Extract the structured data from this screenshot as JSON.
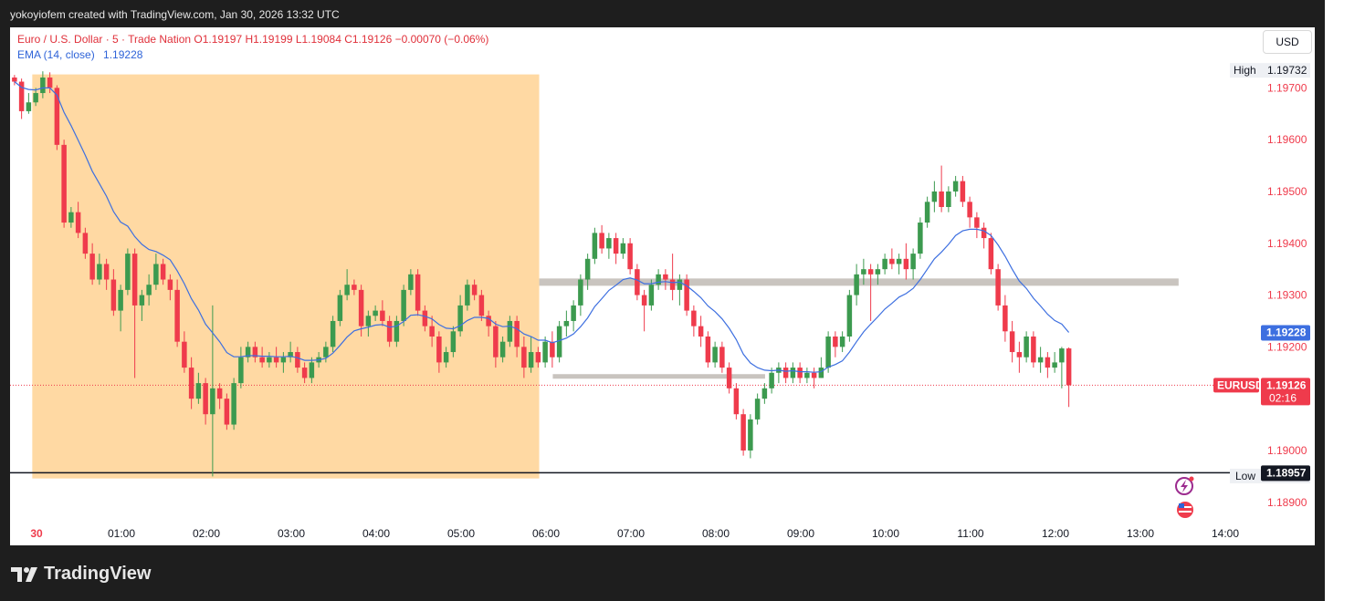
{
  "header": {
    "attribution": "yokoyiofem created with TradingView.com, Jan 30, 2026 13:32 UTC"
  },
  "legend": {
    "symbol_line": "Euro / U.S. Dollar · 5 · Trade Nation  O1.19197  H1.19199  L1.19084  C1.19126  −0.00070 (−0.06%)",
    "ema_name": "EMA (14, close)",
    "ema_value": "1.19228"
  },
  "currency_button": "USD",
  "footer": {
    "brand": "TradingView"
  },
  "colors": {
    "up": "#3c9a4f",
    "down": "#ef3b4c",
    "ema": "#3d6fe0",
    "zone_fill": "#ffd9a3",
    "level_line": "#c9c4bf",
    "grid_text": "#ef3b4c",
    "axis_text": "#131722"
  },
  "chart_data": {
    "type": "candlestick",
    "symbol": "EURUSD",
    "interval": "5",
    "ylim": [
      1.1887,
      1.1975
    ],
    "y_ticks": [
      1.197,
      1.196,
      1.195,
      1.194,
      1.193,
      1.192,
      1.19,
      1.189
    ],
    "y_tick_labels": [
      "1.19700",
      "1.19600",
      "1.19500",
      "1.19400",
      "1.19300",
      "1.19200",
      "1.19000",
      "1.18900"
    ],
    "x_ticks": [
      {
        "label": "30",
        "hour": 0,
        "bold": true
      },
      {
        "label": "01:00",
        "hour": 1
      },
      {
        "label": "02:00",
        "hour": 2
      },
      {
        "label": "03:00",
        "hour": 3
      },
      {
        "label": "04:00",
        "hour": 4
      },
      {
        "label": "05:00",
        "hour": 5
      },
      {
        "label": "06:00",
        "hour": 6
      },
      {
        "label": "07:00",
        "hour": 7
      },
      {
        "label": "08:00",
        "hour": 8
      },
      {
        "label": "09:00",
        "hour": 9
      },
      {
        "label": "10:00",
        "hour": 10
      },
      {
        "label": "11:00",
        "hour": 11
      },
      {
        "label": "12:00",
        "hour": 12
      },
      {
        "label": "13:00",
        "hour": 13
      },
      {
        "label": "14:00",
        "hour": 14
      }
    ],
    "labels": {
      "high": {
        "text": "High",
        "value": "1.19732",
        "price": 1.19732
      },
      "low": {
        "text": "Low",
        "value": "1.18949",
        "price": 1.18949
      },
      "ema": {
        "value": "1.19228",
        "price": 1.19228
      },
      "last": {
        "symbol": "EURUSD",
        "value": "1.19126",
        "price": 1.19126,
        "countdown": "02:16"
      },
      "horizontal_line": {
        "value": "1.18957",
        "price": 1.18957
      }
    },
    "annotations": {
      "session_box": {
        "from_hour": -0.05,
        "to_hour": 5.92,
        "top": 1.19726,
        "bottom": 1.18946
      },
      "resistance_zone": {
        "from_hour": 5.92,
        "to_hour": 13.45,
        "price": 1.19325
      },
      "support_zone": {
        "from_hour": 6.08,
        "to_hour": 8.58,
        "price": 1.19143
      }
    },
    "candles": [
      [
        1.1972,
        1.19725,
        1.19705,
        1.19712
      ],
      [
        1.19712,
        1.19718,
        1.1964,
        1.19655
      ],
      [
        1.19655,
        1.1969,
        1.1965,
        1.19672
      ],
      [
        1.19672,
        1.197,
        1.19665,
        1.1969
      ],
      [
        1.1969,
        1.19732,
        1.1968,
        1.1972
      ],
      [
        1.1972,
        1.1973,
        1.1969,
        1.197
      ],
      [
        1.197,
        1.19705,
        1.1958,
        1.1959
      ],
      [
        1.1959,
        1.196,
        1.1943,
        1.1944
      ],
      [
        1.1944,
        1.1947,
        1.1943,
        1.1946
      ],
      [
        1.1946,
        1.1948,
        1.1941,
        1.1942
      ],
      [
        1.1942,
        1.1943,
        1.1937,
        1.1938
      ],
      [
        1.1938,
        1.194,
        1.1932,
        1.1933
      ],
      [
        1.1933,
        1.1938,
        1.1932,
        1.1936
      ],
      [
        1.1936,
        1.1937,
        1.1931,
        1.1933
      ],
      [
        1.1933,
        1.1935,
        1.1926,
        1.1927
      ],
      [
        1.1927,
        1.1932,
        1.1923,
        1.1931
      ],
      [
        1.1931,
        1.1939,
        1.193,
        1.1938
      ],
      [
        1.1938,
        1.1939,
        1.1914,
        1.1928
      ],
      [
        1.1928,
        1.1931,
        1.1925,
        1.193
      ],
      [
        1.193,
        1.1934,
        1.1928,
        1.1932
      ],
      [
        1.1932,
        1.1938,
        1.1931,
        1.1936
      ],
      [
        1.1936,
        1.1937,
        1.1932,
        1.1933
      ],
      [
        1.1933,
        1.1934,
        1.1929,
        1.1931
      ],
      [
        1.1931,
        1.1933,
        1.192,
        1.1921
      ],
      [
        1.1921,
        1.1923,
        1.1915,
        1.1916
      ],
      [
        1.1916,
        1.1918,
        1.1908,
        1.191
      ],
      [
        1.191,
        1.1915,
        1.1909,
        1.1913
      ],
      [
        1.1913,
        1.1914,
        1.1905,
        1.1907
      ],
      [
        1.1907,
        1.1928,
        1.1895,
        1.1912
      ],
      [
        1.1912,
        1.1913,
        1.1908,
        1.191
      ],
      [
        1.191,
        1.1911,
        1.1904,
        1.1905
      ],
      [
        1.1905,
        1.1914,
        1.1904,
        1.1913
      ],
      [
        1.1913,
        1.192,
        1.1912,
        1.1918
      ],
      [
        1.1918,
        1.1921,
        1.1917,
        1.192
      ],
      [
        1.192,
        1.1921,
        1.1917,
        1.1918
      ],
      [
        1.1918,
        1.192,
        1.1916,
        1.1917
      ],
      [
        1.1917,
        1.1919,
        1.1916,
        1.1918
      ],
      [
        1.1918,
        1.192,
        1.1916,
        1.1917
      ],
      [
        1.1917,
        1.1919,
        1.1915,
        1.1918
      ],
      [
        1.1918,
        1.1921,
        1.1917,
        1.1919
      ],
      [
        1.1919,
        1.192,
        1.1915,
        1.1916
      ],
      [
        1.1916,
        1.1917,
        1.1913,
        1.1914
      ],
      [
        1.1914,
        1.1918,
        1.1913,
        1.1917
      ],
      [
        1.1917,
        1.1919,
        1.1916,
        1.1918
      ],
      [
        1.1918,
        1.1921,
        1.1917,
        1.192
      ],
      [
        1.192,
        1.1926,
        1.1919,
        1.1925
      ],
      [
        1.1925,
        1.1931,
        1.1924,
        1.193
      ],
      [
        1.193,
        1.1935,
        1.1929,
        1.1932
      ],
      [
        1.1932,
        1.1933,
        1.193,
        1.1931
      ],
      [
        1.1931,
        1.1932,
        1.1922,
        1.1924
      ],
      [
        1.1924,
        1.1927,
        1.1922,
        1.1926
      ],
      [
        1.1926,
        1.1928,
        1.1925,
        1.1927
      ],
      [
        1.1927,
        1.1929,
        1.1924,
        1.1925
      ],
      [
        1.1925,
        1.1926,
        1.192,
        1.1921
      ],
      [
        1.1921,
        1.1926,
        1.192,
        1.1925
      ],
      [
        1.1925,
        1.1932,
        1.1924,
        1.1931
      ],
      [
        1.1931,
        1.1935,
        1.193,
        1.1934
      ],
      [
        1.1934,
        1.1935,
        1.1926,
        1.1927
      ],
      [
        1.1927,
        1.1928,
        1.1923,
        1.1924
      ],
      [
        1.1924,
        1.1926,
        1.192,
        1.1922
      ],
      [
        1.1922,
        1.1923,
        1.1915,
        1.1917
      ],
      [
        1.1917,
        1.192,
        1.1916,
        1.1919
      ],
      [
        1.1919,
        1.1924,
        1.1918,
        1.1923
      ],
      [
        1.1923,
        1.193,
        1.1922,
        1.1928
      ],
      [
        1.1928,
        1.1933,
        1.1927,
        1.1932
      ],
      [
        1.1932,
        1.1933,
        1.1929,
        1.193
      ],
      [
        1.193,
        1.1931,
        1.1925,
        1.1926
      ],
      [
        1.1926,
        1.1927,
        1.1922,
        1.1924
      ],
      [
        1.1924,
        1.1925,
        1.1916,
        1.1918
      ],
      [
        1.1918,
        1.1922,
        1.1917,
        1.1921
      ],
      [
        1.1921,
        1.1926,
        1.192,
        1.1925
      ],
      [
        1.1925,
        1.1926,
        1.1918,
        1.192
      ],
      [
        1.192,
        1.1922,
        1.1914,
        1.1916
      ],
      [
        1.1916,
        1.1922,
        1.1915,
        1.1919
      ],
      [
        1.1919,
        1.192,
        1.1916,
        1.1917
      ],
      [
        1.1917,
        1.1922,
        1.1916,
        1.1921
      ],
      [
        1.1921,
        1.1923,
        1.1916,
        1.1918
      ],
      [
        1.1918,
        1.1925,
        1.1917,
        1.1924
      ],
      [
        1.1924,
        1.1927,
        1.1922,
        1.1925
      ],
      [
        1.1925,
        1.1929,
        1.1923,
        1.1928
      ],
      [
        1.1928,
        1.1934,
        1.1926,
        1.1933
      ],
      [
        1.1933,
        1.1938,
        1.1931,
        1.1937
      ],
      [
        1.1937,
        1.1943,
        1.1936,
        1.1942
      ],
      [
        1.1942,
        1.19435,
        1.1938,
        1.1939
      ],
      [
        1.1939,
        1.1942,
        1.1937,
        1.1941
      ],
      [
        1.1941,
        1.1942,
        1.1936,
        1.1938
      ],
      [
        1.1938,
        1.1941,
        1.1937,
        1.194
      ],
      [
        1.194,
        1.1941,
        1.1934,
        1.1935
      ],
      [
        1.1935,
        1.1936,
        1.1929,
        1.193
      ],
      [
        1.193,
        1.1931,
        1.1923,
        1.1928
      ],
      [
        1.1928,
        1.1933,
        1.1927,
        1.1932
      ],
      [
        1.1932,
        1.1935,
        1.1931,
        1.1934
      ],
      [
        1.1934,
        1.1935,
        1.1931,
        1.1933
      ],
      [
        1.1933,
        1.1938,
        1.1929,
        1.1931
      ],
      [
        1.1931,
        1.1934,
        1.1928,
        1.1933
      ],
      [
        1.1933,
        1.1934,
        1.1926,
        1.1927
      ],
      [
        1.1927,
        1.1928,
        1.1922,
        1.1924
      ],
      [
        1.1924,
        1.1926,
        1.192,
        1.1922
      ],
      [
        1.1922,
        1.1923,
        1.1916,
        1.1917
      ],
      [
        1.1917,
        1.1921,
        1.1916,
        1.192
      ],
      [
        1.192,
        1.1921,
        1.1915,
        1.1916
      ],
      [
        1.1916,
        1.1917,
        1.1911,
        1.1912
      ],
      [
        1.1912,
        1.1913,
        1.1906,
        1.1907
      ],
      [
        1.1907,
        1.1908,
        1.1899,
        1.19
      ],
      [
        1.19,
        1.1907,
        1.18985,
        1.1906
      ],
      [
        1.1906,
        1.1911,
        1.1905,
        1.191
      ],
      [
        1.191,
        1.1913,
        1.1909,
        1.1912
      ],
      [
        1.1912,
        1.1916,
        1.1911,
        1.1915
      ],
      [
        1.1915,
        1.1917,
        1.1913,
        1.1916
      ],
      [
        1.1916,
        1.1917,
        1.1913,
        1.1914
      ],
      [
        1.1914,
        1.1917,
        1.1913,
        1.1916
      ],
      [
        1.1916,
        1.1917,
        1.1913,
        1.1914
      ],
      [
        1.1914,
        1.1916,
        1.1913,
        1.1915
      ],
      [
        1.1915,
        1.1916,
        1.1912,
        1.1914
      ],
      [
        1.1914,
        1.1918,
        1.1914,
        1.1916
      ],
      [
        1.1916,
        1.1923,
        1.1915,
        1.1922
      ],
      [
        1.1922,
        1.1923,
        1.1918,
        1.192
      ],
      [
        1.192,
        1.1923,
        1.1919,
        1.1922
      ],
      [
        1.1922,
        1.1931,
        1.1921,
        1.193
      ],
      [
        1.193,
        1.1936,
        1.1928,
        1.1934
      ],
      [
        1.1934,
        1.1937,
        1.1932,
        1.1935
      ],
      [
        1.1935,
        1.1936,
        1.1925,
        1.1934
      ],
      [
        1.1934,
        1.1936,
        1.1932,
        1.1935
      ],
      [
        1.1935,
        1.1938,
        1.1934,
        1.1937
      ],
      [
        1.1937,
        1.1939,
        1.1935,
        1.1936
      ],
      [
        1.1936,
        1.1938,
        1.1934,
        1.1937
      ],
      [
        1.1937,
        1.194,
        1.1933,
        1.1935
      ],
      [
        1.1935,
        1.1939,
        1.1933,
        1.1938
      ],
      [
        1.1938,
        1.1945,
        1.1937,
        1.1944
      ],
      [
        1.1944,
        1.1949,
        1.1943,
        1.1948
      ],
      [
        1.1948,
        1.1952,
        1.1946,
        1.195
      ],
      [
        1.195,
        1.1955,
        1.1946,
        1.1947
      ],
      [
        1.1947,
        1.1951,
        1.1946,
        1.195
      ],
      [
        1.195,
        1.1953,
        1.1949,
        1.1952
      ],
      [
        1.1952,
        1.1953,
        1.1947,
        1.1948
      ],
      [
        1.1948,
        1.1949,
        1.1943,
        1.1945
      ],
      [
        1.1945,
        1.1946,
        1.1941,
        1.1943
      ],
      [
        1.1943,
        1.1944,
        1.1939,
        1.1941
      ],
      [
        1.1941,
        1.1942,
        1.1934,
        1.1935
      ],
      [
        1.1935,
        1.1936,
        1.1927,
        1.1928
      ],
      [
        1.1928,
        1.193,
        1.1921,
        1.1923
      ],
      [
        1.1923,
        1.1925,
        1.1917,
        1.1919
      ],
      [
        1.1919,
        1.1921,
        1.1915,
        1.1918
      ],
      [
        1.1918,
        1.1923,
        1.1917,
        1.1922
      ],
      [
        1.1922,
        1.1923,
        1.1916,
        1.1917
      ],
      [
        1.1917,
        1.192,
        1.1915,
        1.1918
      ],
      [
        1.1918,
        1.1919,
        1.1914,
        1.1916
      ],
      [
        1.1916,
        1.1919,
        1.1915,
        1.1917
      ],
      [
        1.1917,
        1.192,
        1.1912,
        1.19197
      ],
      [
        1.19197,
        1.19199,
        1.19084,
        1.19126
      ]
    ],
    "ema": [
      1.19712,
      1.19701,
      1.19697,
      1.19696,
      1.197,
      1.197,
      1.19686,
      1.19653,
      1.19627,
      1.19599,
      1.1957,
      1.19539,
      1.19515,
      1.19491,
      1.19461,
      1.19441,
      1.19433,
      1.19413,
      1.19398,
      1.19388,
      1.19384,
      1.19377,
      1.19368,
      1.19347,
      1.19322,
      1.19293,
      1.19271,
      1.19244,
      1.19227,
      1.1921,
      1.19189,
      1.19181,
      1.19181,
      1.19183,
      1.19183,
      1.19182,
      1.19182,
      1.19181,
      1.19181,
      1.19182,
      1.19179,
      1.19174,
      1.19174,
      1.19175,
      1.19178,
      1.19188,
      1.19203,
      1.19219,
      1.19231,
      1.19235,
      1.19238,
      1.19242,
      1.19243,
      1.19238,
      1.1924,
      1.19249,
      1.19261,
      1.19262,
      1.19259,
      1.19254,
      1.19243,
      1.19236,
      1.19235,
      1.19241,
      1.19251,
      1.19257,
      1.19257,
      1.19255,
      1.19244,
      1.19239,
      1.1924,
      1.19235,
      1.19225,
      1.1922,
      1.19213,
      1.19213,
      1.19208,
      1.19212,
      1.19217,
      1.19225,
      1.19239,
      1.19256,
      1.19278,
      1.19293,
      1.19309,
      1.19319,
      1.1933,
      1.19333,
      1.19329,
      1.19322,
      1.19322,
      1.19325,
      1.19326,
      1.19324,
      1.19325,
      1.19318,
      1.19307,
      1.19295,
      1.19279,
      1.19268,
      1.19254,
      1.19236,
      1.19214,
      1.19186,
      1.19169,
      1.1916,
      1.19155,
      1.19154,
      1.19155,
      1.19153,
      1.19154,
      1.19152,
      1.19152,
      1.19151,
      1.19152,
      1.19161,
      1.19166,
      1.19173,
      1.1919,
      1.1921,
      1.19229,
      1.19244,
      1.19258,
      1.19273,
      1.19284,
      1.19296,
      1.19303,
      1.19313,
      1.1933,
      1.1935,
      1.1937,
      1.19383,
      1.19398,
      1.19415,
      1.19424,
      1.19427,
      1.19427,
      1.19424,
      1.19415,
      1.19397,
      1.19375,
      1.1935,
      1.19327,
      1.19313,
      1.19294,
      1.19279,
      1.19263,
      1.19251,
      1.19244,
      1.19228
    ]
  }
}
